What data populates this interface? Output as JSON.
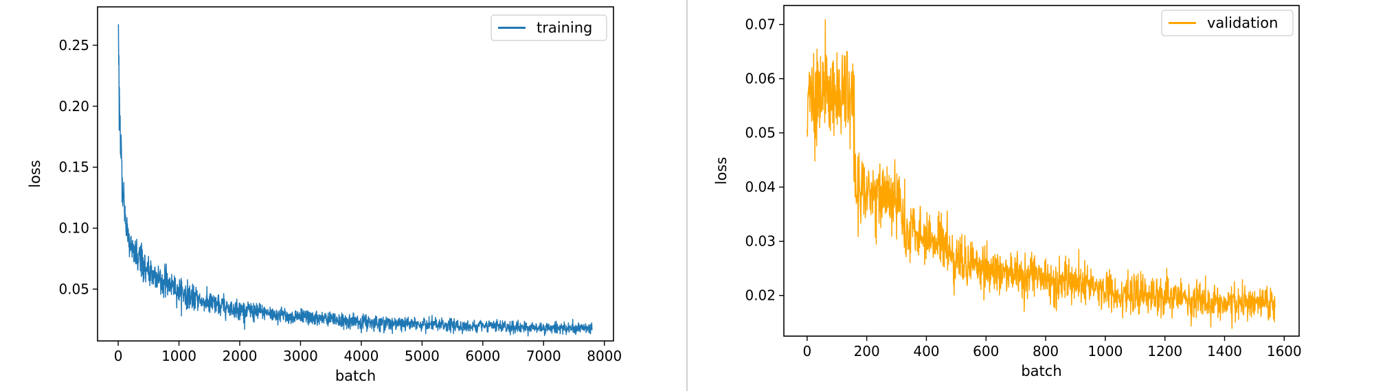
{
  "divider_color": "#d0d0d0",
  "chart_data": [
    {
      "type": "line",
      "title": "",
      "xlabel": "batch",
      "ylabel": "loss",
      "xlim": [
        -340,
        8150
      ],
      "ylim": [
        0.0075,
        0.2815
      ],
      "xticks": [
        0,
        1000,
        2000,
        3000,
        4000,
        5000,
        6000,
        7000,
        8000
      ],
      "xtick_labels": [
        "0",
        "1000",
        "2000",
        "3000",
        "4000",
        "5000",
        "6000",
        "7000",
        "8000"
      ],
      "yticks": [
        0.05,
        0.1,
        0.15,
        0.2,
        0.25
      ],
      "ytick_labels": [
        "0.05",
        "0.10",
        "0.15",
        "0.20",
        "0.25"
      ],
      "grid": false,
      "legend_position": "top-right",
      "series": [
        {
          "name": "training",
          "color": "#1f77b4",
          "x": [
            0,
            10,
            25,
            50,
            80,
            120,
            170,
            250,
            350,
            500,
            700,
            900,
            1200,
            1500,
            2000,
            2500,
            3000,
            3500,
            4000,
            4500,
            5000,
            5500,
            6000,
            6500,
            7000,
            7500,
            7800
          ],
          "values": [
            0.265,
            0.23,
            0.19,
            0.16,
            0.13,
            0.105,
            0.09,
            0.08,
            0.072,
            0.065,
            0.058,
            0.052,
            0.043,
            0.038,
            0.033,
            0.03,
            0.027,
            0.025,
            0.023,
            0.022,
            0.021,
            0.02,
            0.0195,
            0.019,
            0.0185,
            0.018,
            0.0178
          ]
        }
      ]
    },
    {
      "type": "line",
      "title": "",
      "xlabel": "batch",
      "ylabel": "loss",
      "xlim": [
        -78,
        1650
      ],
      "ylim": [
        0.0125,
        0.0735
      ],
      "xticks": [
        0,
        200,
        400,
        600,
        800,
        1000,
        1200,
        1400,
        1600
      ],
      "xtick_labels": [
        "0",
        "200",
        "400",
        "600",
        "800",
        "1000",
        "1200",
        "1400",
        "1600"
      ],
      "yticks": [
        0.02,
        0.03,
        0.04,
        0.05,
        0.06,
        0.07
      ],
      "ytick_labels": [
        "0.02",
        "0.03",
        "0.04",
        "0.05",
        "0.06",
        "0.07"
      ],
      "grid": false,
      "legend_position": "top-right",
      "series": [
        {
          "name": "validation",
          "color": "#ffa500",
          "x": [
            0,
            20,
            40,
            60,
            80,
            100,
            120,
            140,
            155,
            160,
            170,
            200,
            250,
            300,
            310,
            320,
            350,
            400,
            450,
            470,
            480,
            500,
            600,
            700,
            800,
            900,
            1000,
            1100,
            1200,
            1300,
            1400,
            1500,
            1570
          ],
          "values": [
            0.057,
            0.058,
            0.056,
            0.059,
            0.057,
            0.056,
            0.058,
            0.057,
            0.056,
            0.04,
            0.039,
            0.039,
            0.039,
            0.038,
            0.038,
            0.032,
            0.031,
            0.031,
            0.03,
            0.03,
            0.027,
            0.027,
            0.025,
            0.024,
            0.023,
            0.022,
            0.021,
            0.02,
            0.02,
            0.019,
            0.0185,
            0.0185,
            0.0185
          ]
        }
      ]
    }
  ]
}
